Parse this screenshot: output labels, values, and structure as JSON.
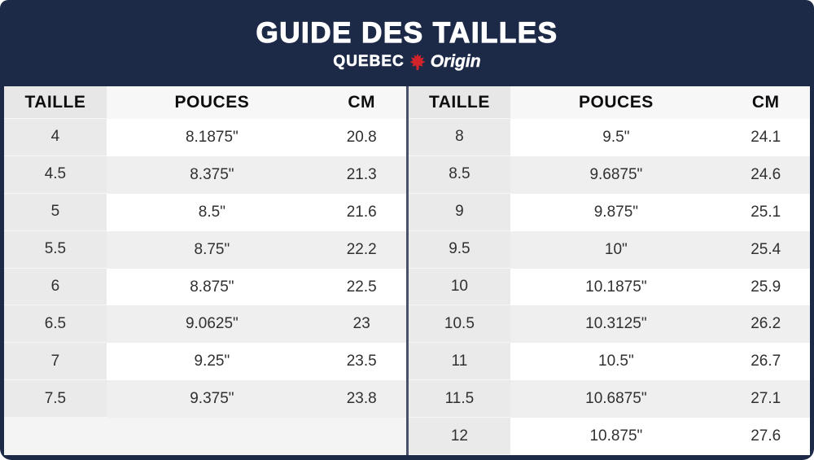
{
  "banner": {
    "title": "GUIDE DES TAILLES",
    "brand_name": "QUEBEC",
    "brand_suffix": "Origin",
    "leaf_icon": "maple-leaf-icon"
  },
  "colors": {
    "navy": "#1c2a47",
    "divider_slate": "#485169",
    "leaf_red": "#d2232a",
    "taille_column_gray": "#eaeaea",
    "alt_row_gray": "#efefef",
    "header_row_gray": "#f7f7f7",
    "title_text": "#ffffff",
    "cell_text": "#303030"
  },
  "chart_data": {
    "type": "table",
    "title": "GUIDE DES TAILLES",
    "subtitle": "QUEBEC Origin",
    "tables": [
      {
        "columns": [
          "TAILLE",
          "POUCES",
          "CM"
        ],
        "rows": [
          [
            "4",
            "8.1875\"",
            "20.8"
          ],
          [
            "4.5",
            "8.375\"",
            "21.3"
          ],
          [
            "5",
            "8.5\"",
            "21.6"
          ],
          [
            "5.5",
            "8.75\"",
            "22.2"
          ],
          [
            "6",
            "8.875\"",
            "22.5"
          ],
          [
            "6.5",
            "9.0625\"",
            "23"
          ],
          [
            "7",
            "9.25\"",
            "23.5"
          ],
          [
            "7.5",
            "9.375\"",
            "23.8"
          ]
        ]
      },
      {
        "columns": [
          "TAILLE",
          "POUCES",
          "CM"
        ],
        "rows": [
          [
            "8",
            "9.5\"",
            "24.1"
          ],
          [
            "8.5",
            "9.6875\"",
            "24.6"
          ],
          [
            "9",
            "9.875\"",
            "25.1"
          ],
          [
            "9.5",
            "10\"",
            "25.4"
          ],
          [
            "10",
            "10.1875\"",
            "25.9"
          ],
          [
            "10.5",
            "10.3125\"",
            "26.2"
          ],
          [
            "11",
            "10.5\"",
            "26.7"
          ],
          [
            "11.5",
            "10.6875\"",
            "27.1"
          ],
          [
            "12",
            "10.875\"",
            "27.6"
          ]
        ]
      }
    ]
  }
}
